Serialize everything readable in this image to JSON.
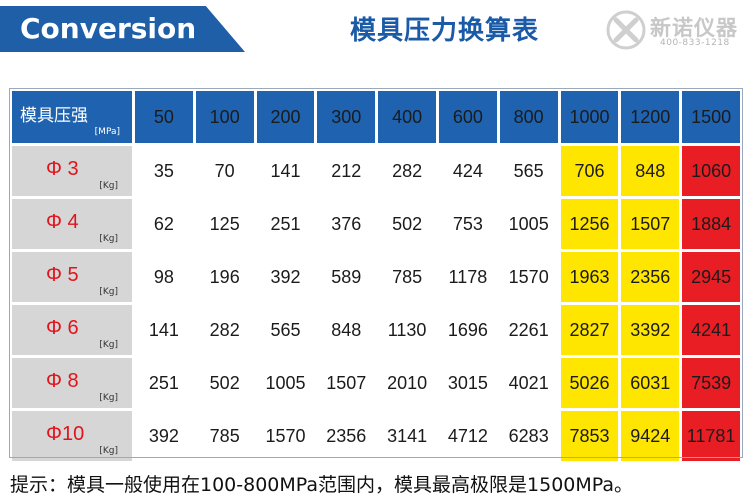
{
  "header": {
    "brand_label": "Conversion",
    "title": "模具压力换算表",
    "logo_name": "新诺仪器",
    "logo_phone": "400-833-1218",
    "accent_color": "#1f63b0"
  },
  "table": {
    "corner_title": "模具压强",
    "corner_unit": "[MPa]",
    "columns": [
      "50",
      "100",
      "200",
      "300",
      "400",
      "600",
      "800",
      "1000",
      "1200",
      "1500"
    ],
    "column_highlight": [
      "normal",
      "normal",
      "normal",
      "normal",
      "normal",
      "normal",
      "normal",
      "yellow",
      "yellow",
      "red"
    ],
    "rows": [
      {
        "label": "Φ 3",
        "unit": "[Kg]",
        "values": [
          "35",
          "70",
          "141",
          "212",
          "282",
          "424",
          "565",
          "706",
          "848",
          "1060"
        ]
      },
      {
        "label": "Φ 4",
        "unit": "[Kg]",
        "values": [
          "62",
          "125",
          "251",
          "376",
          "502",
          "753",
          "1005",
          "1256",
          "1507",
          "1884"
        ]
      },
      {
        "label": "Φ 5",
        "unit": "[Kg]",
        "values": [
          "98",
          "196",
          "392",
          "589",
          "785",
          "1178",
          "1570",
          "1963",
          "2356",
          "2945"
        ]
      },
      {
        "label": "Φ 6",
        "unit": "[Kg]",
        "values": [
          "141",
          "282",
          "565",
          "848",
          "1130",
          "1696",
          "2261",
          "2827",
          "3392",
          "4241"
        ]
      },
      {
        "label": "Φ 8",
        "unit": "[Kg]",
        "values": [
          "251",
          "502",
          "1005",
          "1507",
          "2010",
          "3015",
          "4021",
          "5026",
          "6031",
          "7539"
        ]
      },
      {
        "label": "Φ10",
        "unit": "[Kg]",
        "values": [
          "392",
          "785",
          "1570",
          "2356",
          "3141",
          "4712",
          "6283",
          "7853",
          "9424",
          "11781"
        ]
      }
    ],
    "colors": {
      "header_blue": "#1f63b0",
      "row_head_gray": "#d6d6d6",
      "yellow": "#ffe600",
      "red": "#e91d24",
      "label_red": "#e0151c"
    }
  },
  "footnote": "提示：模具一般使用在100-800MPa范围内，模具最高极限是1500MPa。"
}
